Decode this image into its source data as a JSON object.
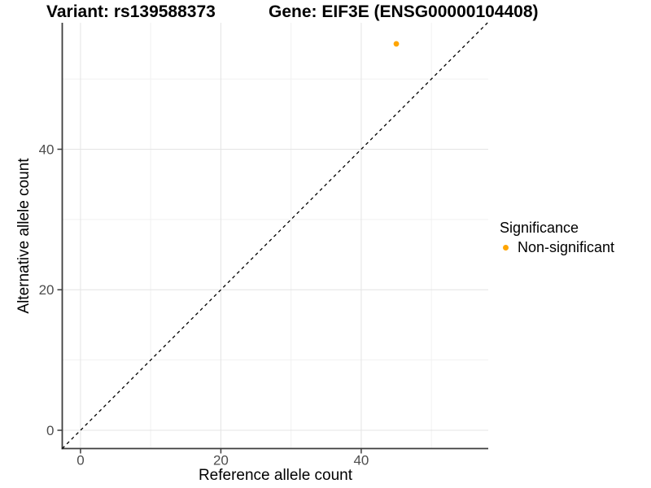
{
  "chart_data": {
    "type": "scatter",
    "titles": {
      "left": "Variant: rs139588373",
      "right": "Gene: EIF3E (ENSG00000104408)"
    },
    "xlabel": "Reference allele count",
    "ylabel": "Alternative allele count",
    "xlim": [
      -2.6,
      58.1
    ],
    "ylim": [
      -2.6,
      58.0
    ],
    "x_ticks_major": [
      0,
      20,
      40
    ],
    "x_ticks_minor": [
      10,
      30,
      50
    ],
    "y_ticks_major": [
      0,
      20,
      40
    ],
    "y_ticks_minor": [
      10,
      30,
      50
    ],
    "grid": "major+minor",
    "series": [
      {
        "name": "Non-significant",
        "color": "#FFA500",
        "points": [
          {
            "x": 45,
            "y": 55
          }
        ]
      }
    ],
    "reference_line": {
      "slope": 1,
      "intercept": 0,
      "style": "dashed",
      "color": "#000000"
    },
    "legend": {
      "position": "right",
      "title": "Significance",
      "entries": [
        {
          "label": "Non-significant",
          "color": "#FFA500"
        }
      ]
    },
    "colors": {
      "background": "#FFFFFF",
      "axis_line": "#3D3D3D",
      "grid_major": "#E4E4E4",
      "grid_minor": "#F1F1F1",
      "tick_label": "#4D4D4D",
      "point": "#FFA500"
    }
  }
}
